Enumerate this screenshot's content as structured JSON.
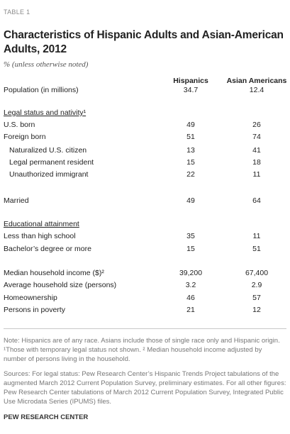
{
  "table_label": "TABLE 1",
  "title": "Characteristics of Hispanic Adults and Asian-American Adults, 2012",
  "subtitle": "% (unless otherwise noted)",
  "columns": [
    "Hispanics",
    "Asian Americans"
  ],
  "rows": [
    {
      "label": "Population (in millions)",
      "hispanics": "34.7",
      "asian_americans": "12.4"
    },
    {
      "label": "Legal status and nativity¹"
    },
    {
      "label": "U.S. born",
      "hispanics": "49",
      "asian_americans": "26"
    },
    {
      "label": "Foreign born",
      "hispanics": "51",
      "asian_americans": "74"
    },
    {
      "label": "Naturalized U.S. citizen",
      "hispanics": "13",
      "asian_americans": "41"
    },
    {
      "label": "Legal permanent resident",
      "hispanics": "15",
      "asian_americans": "18"
    },
    {
      "label": "Unauthorized immigrant",
      "hispanics": "22",
      "asian_americans": "11"
    },
    {
      "label": "Married",
      "hispanics": "49",
      "asian_americans": "64"
    },
    {
      "label": "Educational attainment"
    },
    {
      "label": "Less than high school",
      "hispanics": "35",
      "asian_americans": "11"
    },
    {
      "label": "Bachelor’s degree or more",
      "hispanics": "15",
      "asian_americans": "51"
    },
    {
      "label": "Median household income ($)²",
      "hispanics": "39,200",
      "asian_americans": "67,400"
    },
    {
      "label": "Average household size (persons)",
      "hispanics": "3.2",
      "asian_americans": "2.9"
    },
    {
      "label": "Homeownership",
      "hispanics": "46",
      "asian_americans": "57"
    },
    {
      "label": "Persons in poverty",
      "hispanics": "21",
      "asian_americans": "12"
    }
  ],
  "note": "Note: Hispanics are of any race. Asians include those of single race only and Hispanic origin. ¹Those with temporary legal status not shown. ² Median household income adjusted by number of persons living in the household.",
  "sources": "Sources: For legal status: Pew Research Center’s Hispanic Trends Project tabulations of the augmented March 2012 Current Population Survey, preliminary estimates. For all other figures: Pew Research Center tabulations of March 2012 Current Population Survey, Integrated Public Use Microdata Series (IPUMS) files.",
  "brand": "PEW RESEARCH CENTER"
}
